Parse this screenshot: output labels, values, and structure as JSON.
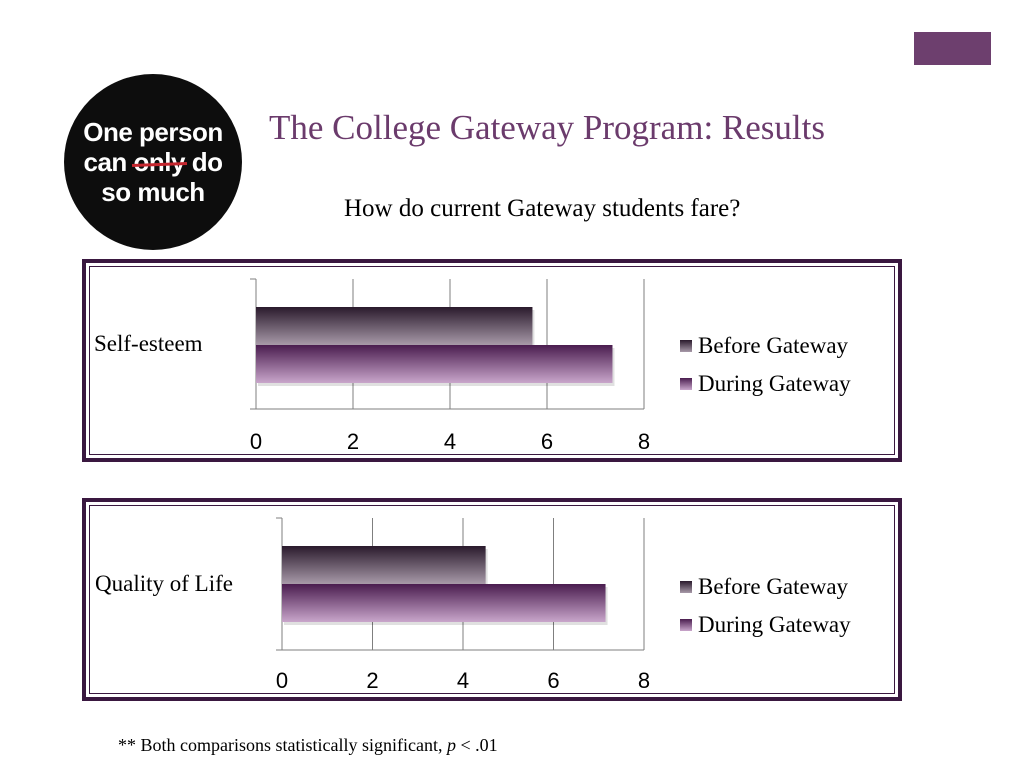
{
  "slide": {
    "title": "The College Gateway Program: Results",
    "subtitle": "How do current Gateway students fare?",
    "logo": {
      "line1": "One person",
      "line2_pre": "can ",
      "line2_strike": "only",
      "line2_post": " do",
      "line3": "so much"
    },
    "footnote": {
      "prefix": "** Both comparisons statistically significant, ",
      "p_symbol": "p",
      "suffix": " < .01"
    }
  },
  "colors": {
    "accent": "#6b3b6c",
    "before_dark": "#2a1a2c",
    "before_light": "#a89aa9",
    "during_dark": "#4a1d4f",
    "during_light": "#c9a6cb",
    "grid": "#7f7f7f"
  },
  "chart_data": [
    {
      "type": "bar",
      "orientation": "horizontal",
      "categories": [
        "Self-esteem"
      ],
      "series": [
        {
          "name": "Before Gateway",
          "values": [
            5.7
          ]
        },
        {
          "name": "During Gateway",
          "values": [
            7.35
          ]
        }
      ],
      "xlim": [
        0,
        8
      ],
      "xticks": [
        "0",
        "2",
        "4",
        "6",
        "8"
      ],
      "grid": true,
      "legend": "right"
    },
    {
      "type": "bar",
      "orientation": "horizontal",
      "categories": [
        "Quality of Life"
      ],
      "series": [
        {
          "name": "Before Gateway",
          "values": [
            4.5
          ]
        },
        {
          "name": "During Gateway",
          "values": [
            7.15
          ]
        }
      ],
      "xlim": [
        0,
        8
      ],
      "xticks": [
        "0",
        "2",
        "4",
        "6",
        "8"
      ],
      "grid": true,
      "legend": "right"
    }
  ]
}
